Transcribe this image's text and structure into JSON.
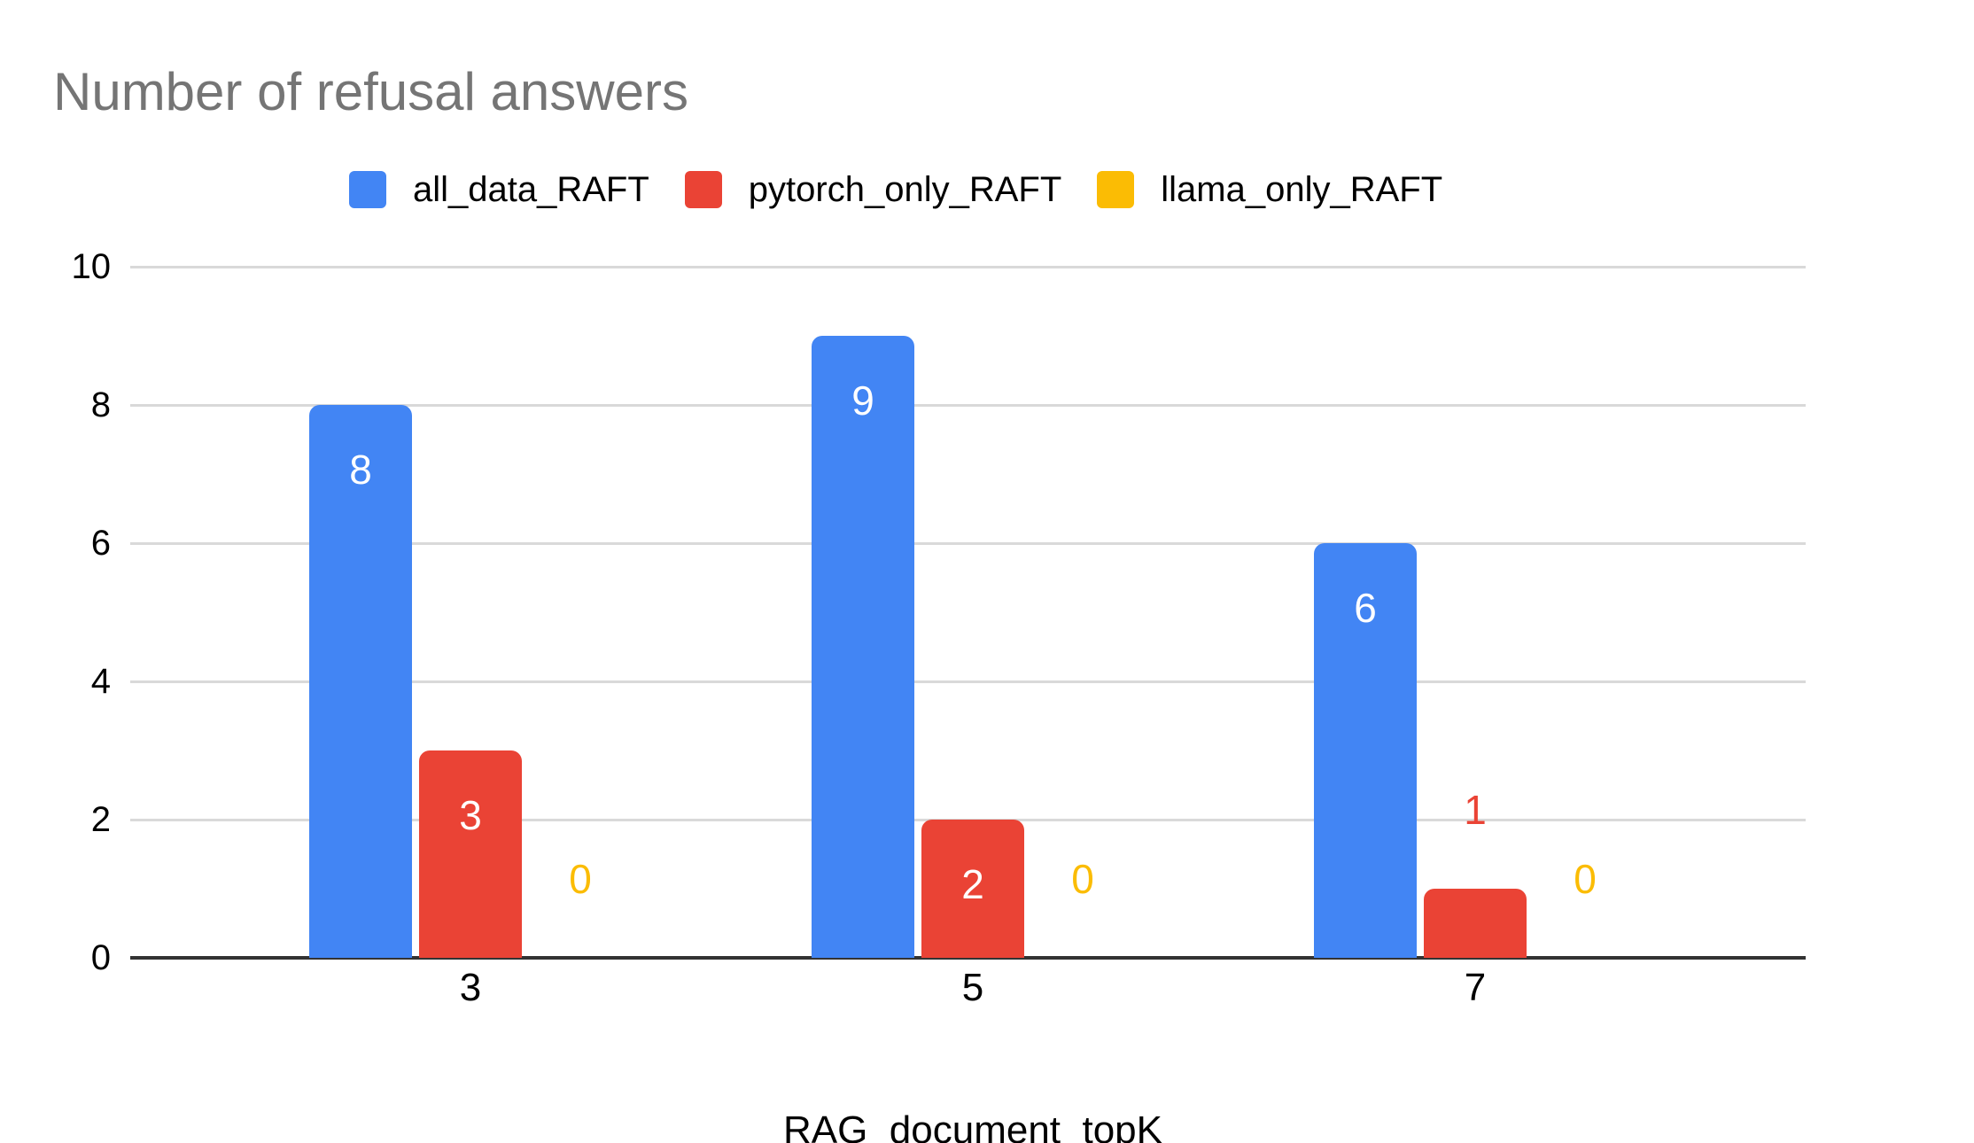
{
  "title": "Number of refusal answers",
  "colors": {
    "title_gray": "#757575",
    "gridline": "#d9d9d9",
    "axis_line": "#333333",
    "tick_label": "#000000",
    "inside_bar_label": "#ffffff",
    "background": "#ffffff",
    "series_blue": "#4285f4",
    "series_red": "#ea4335",
    "series_yellow": "#fbbc04"
  },
  "legend": {
    "items": [
      {
        "label": "all_data_RAFT",
        "color": "#4285f4"
      },
      {
        "label": "pytorch_only_RAFT",
        "color": "#ea4335"
      },
      {
        "label": "llama_only_RAFT",
        "color": "#fbbc04"
      }
    ]
  },
  "x_axis": {
    "title": "RAG_document_topK",
    "ticks": [
      "3",
      "5",
      "7"
    ]
  },
  "y_axis": {
    "ticks": [
      "0",
      "2",
      "4",
      "6",
      "8",
      "10"
    ]
  },
  "chart_data": {
    "type": "bar",
    "title": "Number of refusal answers",
    "categories": [
      "3",
      "5",
      "7"
    ],
    "series": [
      {
        "name": "all_data_RAFT",
        "color": "#4285f4",
        "values": [
          8,
          9,
          6
        ]
      },
      {
        "name": "pytorch_only_RAFT",
        "color": "#ea4335",
        "values": [
          3,
          2,
          1
        ]
      },
      {
        "name": "llama_only_RAFT",
        "color": "#fbbc04",
        "values": [
          0,
          0,
          0
        ]
      }
    ],
    "xlabel": "RAG_document_topK",
    "ylabel": "",
    "ylim": [
      0,
      10
    ],
    "yticks": [
      0,
      2,
      4,
      6,
      8,
      10
    ],
    "grid": true,
    "legend_position": "top",
    "data_labels": true,
    "data_label_rule": "white inside bar when bar is tall; series-colored label above bar for value 1; series-colored 0 shown near baseline for zero-height bars"
  }
}
